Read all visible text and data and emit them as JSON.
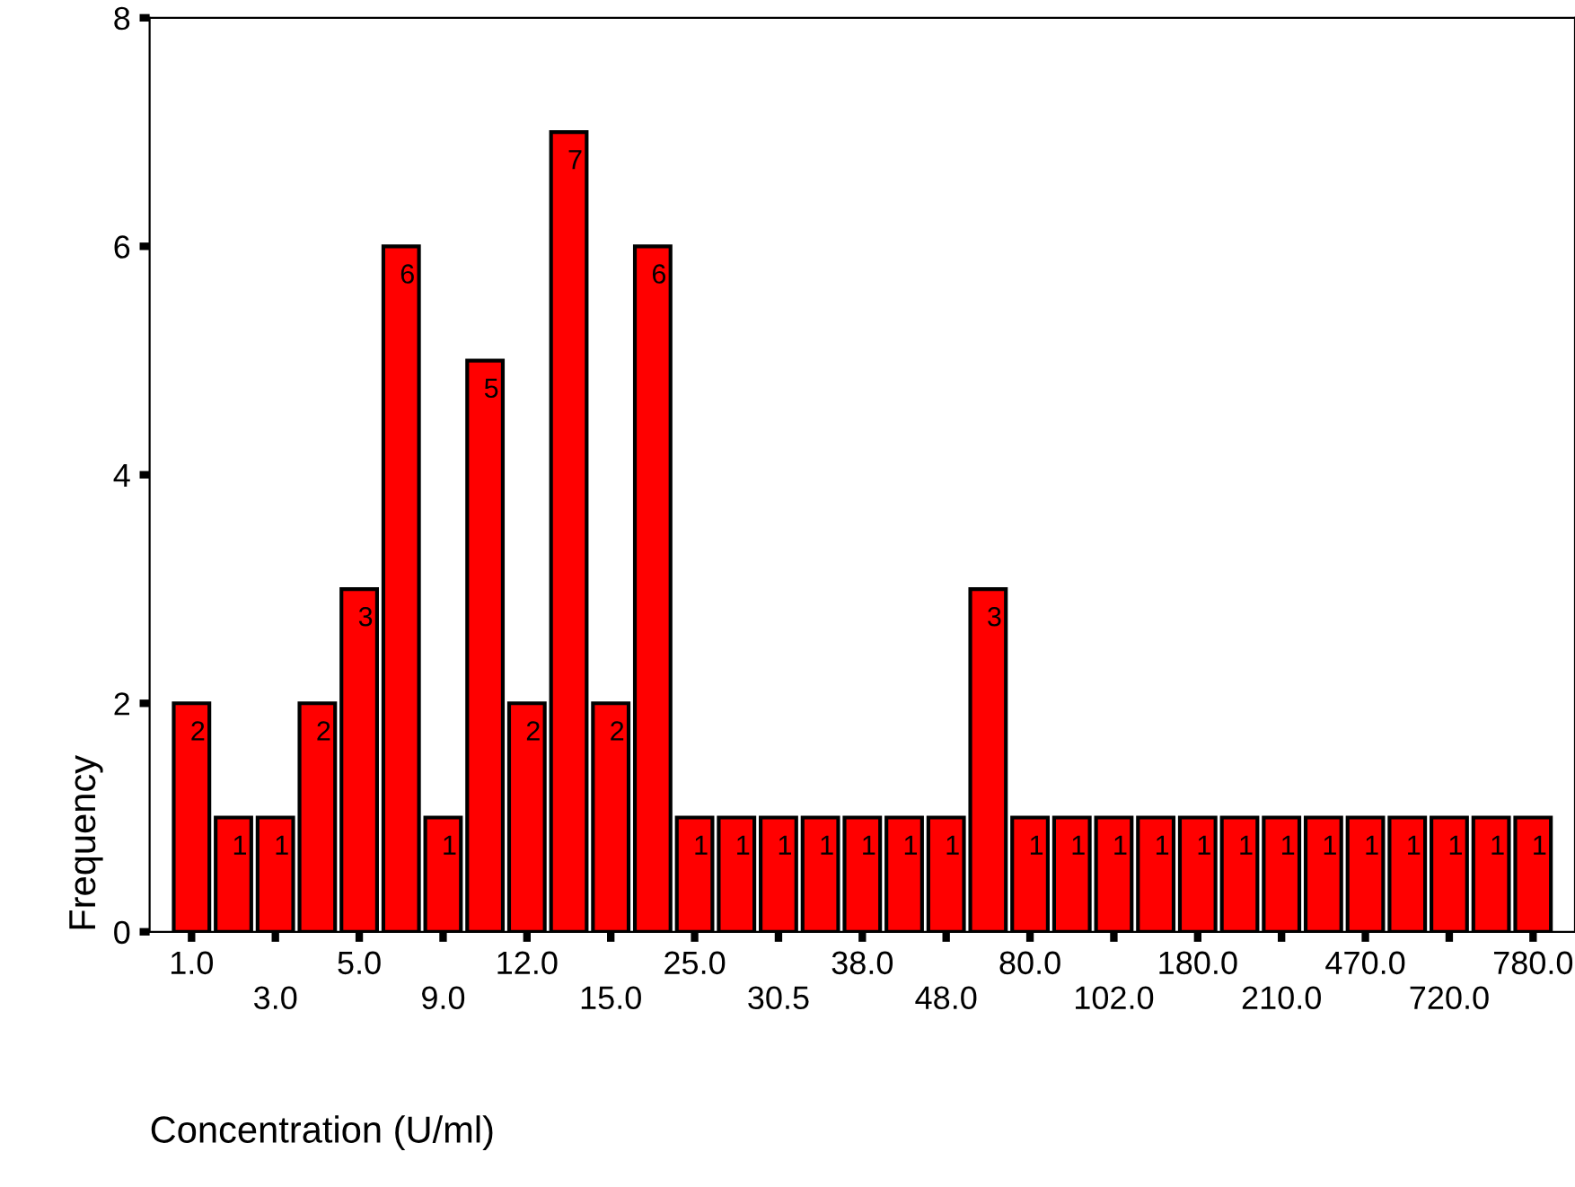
{
  "chart_data": {
    "type": "bar",
    "xlabel": "Concentration (U/ml)",
    "ylabel": "Frequency",
    "categories": [
      "1.0",
      null,
      "3.0",
      null,
      "5.0",
      null,
      "9.0",
      null,
      "12.0",
      null,
      "15.0",
      null,
      "25.0",
      null,
      "30.5",
      null,
      "38.0",
      null,
      "48.0",
      null,
      "80.0",
      null,
      "102.0",
      null,
      "180.0",
      null,
      "210.0",
      null,
      "470.0",
      null,
      "720.0",
      null,
      "780.0"
    ],
    "values": [
      2,
      1,
      1,
      2,
      3,
      6,
      1,
      5,
      2,
      7,
      2,
      6,
      1,
      1,
      1,
      1,
      1,
      1,
      1,
      3,
      1,
      1,
      1,
      1,
      1,
      1,
      1,
      1,
      1,
      1,
      1,
      1,
      1
    ],
    "color": "#ff0000",
    "ylim": [
      0,
      8
    ],
    "yticks": [
      0,
      2,
      4,
      6,
      8
    ],
    "grid": false,
    "data_labels": true
  }
}
